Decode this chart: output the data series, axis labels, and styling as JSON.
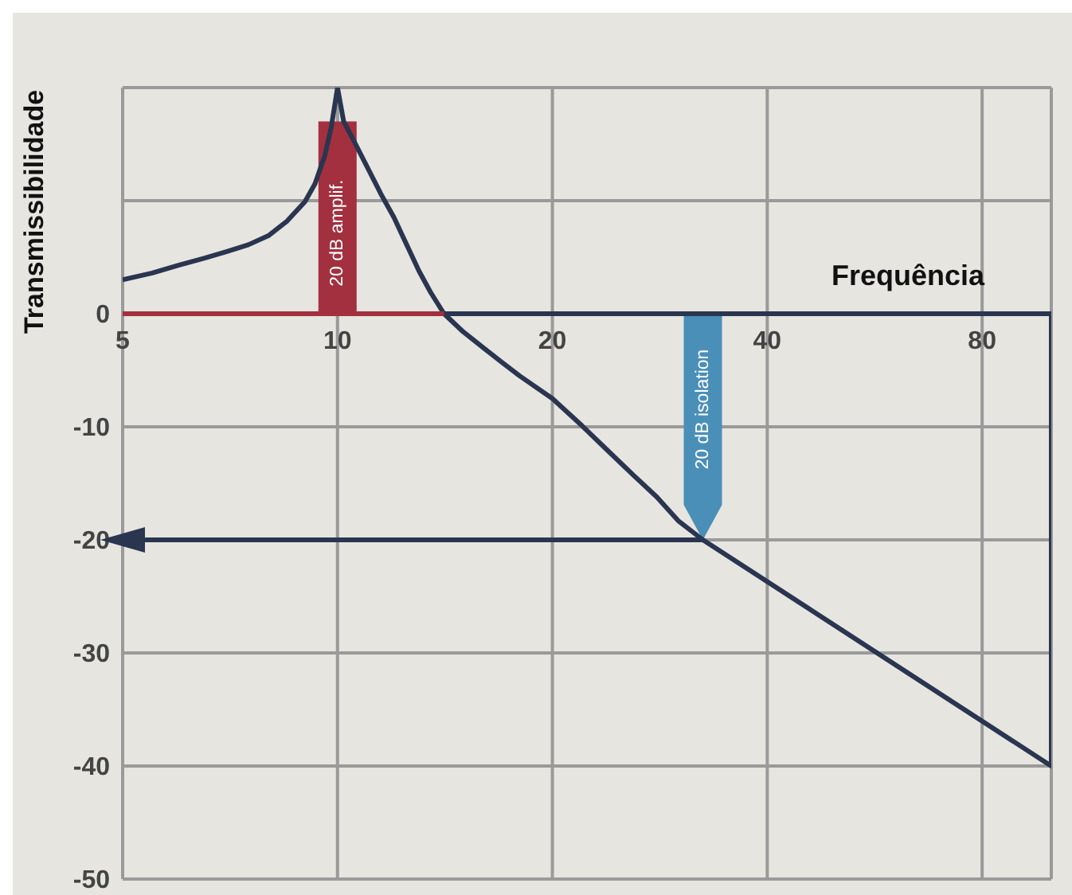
{
  "chart_data": {
    "type": "line",
    "xlabel": "Frequência",
    "ylabel": "Transmissibilidade",
    "log": "x",
    "xlim": [
      5,
      100
    ],
    "xticks": [
      5,
      10,
      20,
      40,
      80,
      {
        "value": 100,
        "label": null
      }
    ],
    "ylim": [
      -50,
      20
    ],
    "yticks": [
      -50,
      -40,
      -30,
      -20,
      -10,
      0,
      {
        "value": 10,
        "label": null
      },
      {
        "value": 20,
        "label": null
      }
    ],
    "grid": true,
    "marker": "none",
    "line_style": "solid",
    "ref_lines": [
      {
        "axis": "y",
        "value": 0,
        "color": "#2a3550"
      }
    ],
    "series": [
      {
        "type": "bar",
        "name": "20 dB amplif.",
        "color": "#a3303e",
        "x": [
          10
        ],
        "values": [
          17
        ]
      },
      {
        "type": "bar",
        "name": "20 dB isolation",
        "color": "#4a8fb8",
        "x": [
          32.5
        ],
        "values": [
          -20
        ]
      },
      {
        "color": "#2a3550",
        "x": [
          5,
          5.5,
          6,
          6.5,
          7,
          7.5,
          8,
          8.5,
          9,
          9.3,
          9.6,
          9.8,
          10,
          10.2,
          10.5,
          11,
          11.5,
          12,
          12.5,
          13,
          13.5,
          14.1,
          15,
          16,
          17,
          18,
          20,
          22,
          24,
          26,
          28,
          30,
          32.5,
          100,
          100
        ],
        "values": [
          3,
          3.6,
          4.3,
          4.9,
          5.5,
          6.1,
          6.9,
          8.2,
          9.9,
          11.5,
          14,
          16.5,
          20,
          17,
          15.5,
          13,
          10.6,
          8.5,
          6.1,
          3.8,
          1.9,
          0,
          -1.6,
          -3,
          -4.3,
          -5.5,
          -7.5,
          -9.9,
          -12.2,
          -14.3,
          -16.2,
          -18.3,
          -20,
          -40,
          0
        ]
      },
      {
        "color": "#a3303e",
        "x": [
          5,
          14.1
        ],
        "values": [
          0,
          0
        ]
      }
    ]
  }
}
